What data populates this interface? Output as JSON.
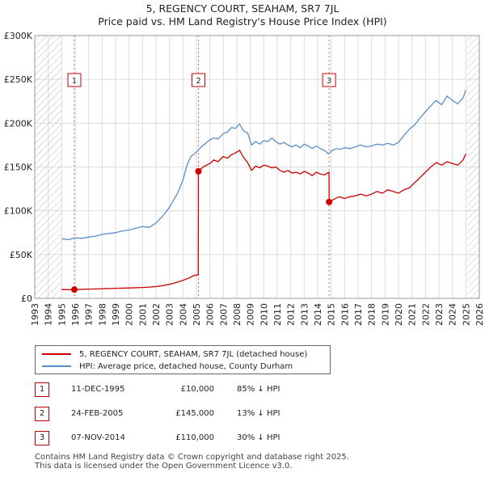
{
  "title_line1": "5, REGENCY COURT, SEAHAM, SR7 7JL",
  "title_line2": "Price paid vs. HM Land Registry's House Price Index (HPI)",
  "colors": {
    "property": "#cc0000",
    "hpi": "#5b8ec6",
    "grid": "#dcdcdc",
    "hatch": "#bbbbbb",
    "bg": "#ffffff"
  },
  "chart_data": {
    "type": "line",
    "x_ticks": [
      "1993",
      "1994",
      "1995",
      "1996",
      "1997",
      "1998",
      "1999",
      "2000",
      "2001",
      "2002",
      "2003",
      "2004",
      "2005",
      "2006",
      "2007",
      "2008",
      "2009",
      "2010",
      "2011",
      "2012",
      "2013",
      "2014",
      "2015",
      "2016",
      "2017",
      "2018",
      "2019",
      "2020",
      "2021",
      "2022",
      "2023",
      "2024",
      "2025",
      "2026"
    ],
    "y_ticks": [
      "£0",
      "£50K",
      "£100K",
      "£150K",
      "£200K",
      "£250K",
      "£300K"
    ],
    "xlim": [
      1993,
      2026
    ],
    "ylim": [
      0,
      300000
    ],
    "hatched_ranges": [
      [
        1993,
        1995.0
      ],
      [
        2025.1,
        2026
      ]
    ],
    "series": [
      {
        "name": "5, REGENCY COURT, SEAHAM, SR7 7JL (detached house)",
        "x": [
          1995.0,
          1995.94,
          1996.5,
          1997.0,
          1998.0,
          1999.0,
          2000.0,
          2001.0,
          2001.5,
          2002.0,
          2002.5,
          2003.0,
          2003.5,
          2004.0,
          2004.5,
          2004.8,
          2005.14,
          2005.15,
          2005.5,
          2006.0,
          2006.3,
          2006.6,
          2007.0,
          2007.3,
          2007.6,
          2007.9,
          2008.2,
          2008.5,
          2008.8,
          2009.1,
          2009.4,
          2009.7,
          2010.0,
          2010.3,
          2010.6,
          2010.9,
          2011.2,
          2011.5,
          2011.8,
          2012.1,
          2012.4,
          2012.7,
          2013.0,
          2013.3,
          2013.6,
          2013.9,
          2014.2,
          2014.5,
          2014.84,
          2014.85,
          2015.2,
          2015.6,
          2016.0,
          2016.4,
          2016.8,
          2017.2,
          2017.6,
          2018.0,
          2018.4,
          2018.8,
          2019.2,
          2019.6,
          2020.0,
          2020.4,
          2020.8,
          2021.2,
          2021.6,
          2022.0,
          2022.4,
          2022.8,
          2023.2,
          2023.6,
          2024.0,
          2024.4,
          2024.8,
          2025.0
        ],
        "values": [
          10000,
          10000,
          10300,
          10500,
          11000,
          11400,
          11800,
          12400,
          12800,
          13400,
          14500,
          16000,
          18000,
          20500,
          23500,
          26000,
          27000,
          145000,
          150000,
          154000,
          158000,
          156000,
          162000,
          160000,
          164000,
          166000,
          169000,
          161000,
          155000,
          146000,
          151000,
          149000,
          152000,
          151000,
          149000,
          150000,
          146000,
          144000,
          146000,
          143000,
          144000,
          142000,
          145000,
          143000,
          140000,
          144000,
          142000,
          141000,
          144000,
          110000,
          113000,
          116000,
          114000,
          116000,
          117000,
          119000,
          117000,
          119000,
          122000,
          120000,
          124000,
          122000,
          120000,
          124000,
          126000,
          132000,
          138000,
          144000,
          150000,
          155000,
          152000,
          156000,
          154000,
          152000,
          158000,
          165000
        ],
        "color": "#cc0000"
      },
      {
        "name": "HPI: Average price, detached house, County Durham",
        "x": [
          1995.0,
          1995.5,
          1996.0,
          1996.5,
          1997.0,
          1997.5,
          1998.0,
          1998.5,
          1999.0,
          1999.5,
          2000.0,
          2000.5,
          2001.0,
          2001.5,
          2002.0,
          2002.5,
          2003.0,
          2003.3,
          2003.6,
          2004.0,
          2004.3,
          2004.6,
          2005.0,
          2005.3,
          2005.6,
          2006.0,
          2006.3,
          2006.6,
          2007.0,
          2007.3,
          2007.6,
          2007.9,
          2008.2,
          2008.5,
          2008.8,
          2009.1,
          2009.4,
          2009.7,
          2010.0,
          2010.3,
          2010.6,
          2010.9,
          2011.2,
          2011.5,
          2011.8,
          2012.1,
          2012.4,
          2012.7,
          2013.0,
          2013.3,
          2013.6,
          2013.9,
          2014.2,
          2014.5,
          2014.8,
          2015.1,
          2015.4,
          2015.7,
          2016.0,
          2016.4,
          2016.8,
          2017.2,
          2017.6,
          2018.0,
          2018.4,
          2018.8,
          2019.2,
          2019.6,
          2020.0,
          2020.4,
          2020.8,
          2021.2,
          2021.6,
          2022.0,
          2022.4,
          2022.8,
          2023.2,
          2023.6,
          2024.0,
          2024.4,
          2024.8,
          2025.0
        ],
        "values": [
          68000,
          67000,
          69000,
          68500,
          70000,
          71000,
          73000,
          74000,
          75000,
          77000,
          78000,
          80000,
          82000,
          81000,
          86000,
          94000,
          104000,
          112000,
          120000,
          135000,
          152000,
          162000,
          167000,
          172000,
          176000,
          181000,
          183000,
          182000,
          188000,
          190000,
          195000,
          194000,
          199000,
          191000,
          189000,
          175000,
          179000,
          176000,
          180000,
          179000,
          183000,
          179000,
          176000,
          178000,
          175000,
          173000,
          175000,
          172000,
          176000,
          174000,
          171000,
          174000,
          171000,
          169000,
          165000,
          169000,
          171000,
          170000,
          172000,
          171000,
          173000,
          175000,
          173000,
          174000,
          176000,
          175000,
          177000,
          175000,
          178000,
          186000,
          193000,
          198000,
          206000,
          213000,
          220000,
          226000,
          221000,
          231000,
          226000,
          222000,
          229000,
          238000
        ],
        "color": "#5b8ec6"
      }
    ],
    "sale_markers": [
      {
        "label": "1",
        "x": 1995.94,
        "value": 10000
      },
      {
        "label": "2",
        "x": 2005.15,
        "value": 145000
      },
      {
        "label": "3",
        "x": 2014.85,
        "value": 110000
      }
    ],
    "legend_position": "below"
  },
  "legend": {
    "property": "5, REGENCY COURT, SEAHAM, SR7 7JL (detached house)",
    "hpi": "HPI: Average price, detached house, County Durham"
  },
  "sales": [
    {
      "num": "1",
      "date": "11-DEC-1995",
      "price": "£10,000",
      "hpi": "85% ↓ HPI"
    },
    {
      "num": "2",
      "date": "24-FEB-2005",
      "price": "£145,000",
      "hpi": "13% ↓ HPI"
    },
    {
      "num": "3",
      "date": "07-NOV-2014",
      "price": "£110,000",
      "hpi": "30% ↓ HPI"
    }
  ],
  "footer_line1": "Contains HM Land Registry data © Crown copyright and database right 2025.",
  "footer_line2": "This data is licensed under the Open Government Licence v3.0."
}
